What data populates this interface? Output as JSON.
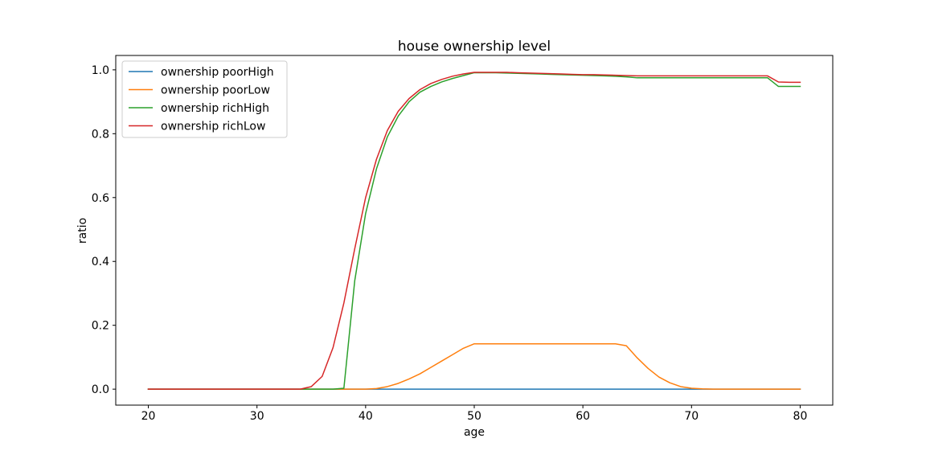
{
  "chart_data": {
    "type": "line",
    "title": "house ownership level",
    "xlabel": "age",
    "ylabel": "ratio",
    "xlim": [
      17.0,
      83.0
    ],
    "ylim": [
      -0.05,
      1.045
    ],
    "xticks": [
      20,
      30,
      40,
      50,
      60,
      70,
      80
    ],
    "yticks": [
      0.0,
      0.2,
      0.4,
      0.6,
      0.8,
      1.0
    ],
    "xtick_labels": [
      "20",
      "30",
      "40",
      "50",
      "60",
      "70",
      "80"
    ],
    "ytick_labels": [
      "0.0",
      "0.2",
      "0.4",
      "0.6",
      "0.8",
      "1.0"
    ],
    "grid": false,
    "legend_position": "top-left",
    "x": [
      20,
      21,
      22,
      23,
      24,
      25,
      26,
      27,
      28,
      29,
      30,
      31,
      32,
      33,
      34,
      35,
      36,
      37,
      38,
      39,
      40,
      41,
      42,
      43,
      44,
      45,
      46,
      47,
      48,
      49,
      50,
      51,
      52,
      53,
      54,
      55,
      56,
      57,
      58,
      59,
      60,
      61,
      62,
      63,
      64,
      65,
      66,
      67,
      68,
      69,
      70,
      71,
      72,
      73,
      74,
      75,
      76,
      77,
      78,
      79,
      80
    ],
    "series": [
      {
        "name": "ownership poorHigh",
        "color": "#1f77b4",
        "values": [
          0,
          0,
          0,
          0,
          0,
          0,
          0,
          0,
          0,
          0,
          0,
          0,
          0,
          0,
          0,
          0,
          0,
          0,
          0,
          0,
          0,
          0,
          0,
          0,
          0,
          0,
          0,
          0,
          0,
          0,
          0,
          0,
          0,
          0,
          0,
          0,
          0,
          0,
          0,
          0,
          0,
          0,
          0,
          0,
          0,
          0,
          0,
          0,
          0,
          0,
          0,
          0,
          0,
          0,
          0,
          0,
          0,
          0,
          0,
          0,
          0
        ]
      },
      {
        "name": "ownership poorLow",
        "color": "#ff7f0e",
        "values": [
          0,
          0,
          0,
          0,
          0,
          0,
          0,
          0,
          0,
          0,
          0,
          0,
          0,
          0,
          0,
          0,
          0,
          0,
          0,
          0,
          0,
          0.002,
          0.008,
          0.018,
          0.032,
          0.048,
          0.068,
          0.088,
          0.108,
          0.128,
          0.142,
          0.142,
          0.142,
          0.142,
          0.142,
          0.142,
          0.142,
          0.142,
          0.142,
          0.142,
          0.142,
          0.142,
          0.142,
          0.142,
          0.136,
          0.098,
          0.065,
          0.038,
          0.02,
          0.008,
          0.003,
          0.001,
          0,
          0,
          0,
          0,
          0,
          0,
          0,
          0,
          0
        ]
      },
      {
        "name": "ownership richHigh",
        "color": "#2ca02c",
        "values": [
          0,
          0,
          0,
          0,
          0,
          0,
          0,
          0,
          0,
          0,
          0,
          0,
          0,
          0,
          0,
          0,
          0,
          0,
          0.003,
          0.34,
          0.55,
          0.69,
          0.79,
          0.855,
          0.9,
          0.93,
          0.948,
          0.962,
          0.973,
          0.982,
          0.991,
          0.991,
          0.991,
          0.99,
          0.989,
          0.988,
          0.987,
          0.986,
          0.985,
          0.984,
          0.983,
          0.982,
          0.981,
          0.98,
          0.978,
          0.975,
          0.975,
          0.975,
          0.975,
          0.975,
          0.975,
          0.975,
          0.975,
          0.975,
          0.975,
          0.975,
          0.975,
          0.975,
          0.948,
          0.948,
          0.948
        ]
      },
      {
        "name": "ownership richLow",
        "color": "#d62728",
        "values": [
          0,
          0,
          0,
          0,
          0,
          0,
          0,
          0,
          0,
          0,
          0,
          0,
          0,
          0,
          0,
          0.008,
          0.04,
          0.13,
          0.27,
          0.44,
          0.6,
          0.72,
          0.81,
          0.87,
          0.91,
          0.938,
          0.957,
          0.97,
          0.98,
          0.987,
          0.992,
          0.992,
          0.992,
          0.992,
          0.991,
          0.99,
          0.989,
          0.988,
          0.987,
          0.986,
          0.985,
          0.985,
          0.984,
          0.983,
          0.982,
          0.981,
          0.981,
          0.981,
          0.981,
          0.981,
          0.981,
          0.981,
          0.981,
          0.981,
          0.981,
          0.981,
          0.981,
          0.981,
          0.962,
          0.961,
          0.961
        ]
      }
    ]
  }
}
